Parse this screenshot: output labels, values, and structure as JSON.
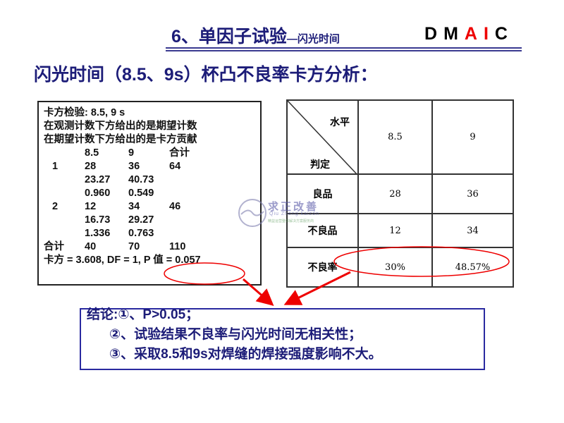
{
  "header": {
    "title": "6、单因子试验",
    "title_suffix": "—闪光时间",
    "brand": [
      "D",
      "M",
      "A",
      "I",
      "C"
    ],
    "brand_highlight": [
      "A",
      "I"
    ],
    "accent_color": "#e00000",
    "title_color": "#1c1c78"
  },
  "subtitle": "闪光时间（8.5、9s）杯凸不良率卡方分析：",
  "chi_square_output": {
    "lines": [
      "卡方检验: 8.5, 9 s",
      "在观测计数下方给出的是期望计数",
      "在期望计数下方给出的是卡方贡献"
    ],
    "columns": [
      "",
      "8.5",
      "9",
      "合计"
    ],
    "rows": [
      [
        "1",
        "28",
        "36",
        "64"
      ],
      [
        "",
        "23.27",
        "40.73",
        ""
      ],
      [
        "",
        "0.960",
        "0.549",
        ""
      ],
      [
        "2",
        "12",
        "34",
        "46"
      ],
      [
        "",
        "16.73",
        "29.27",
        ""
      ],
      [
        "",
        "1.336",
        "0.763",
        ""
      ],
      [
        "合计",
        "40",
        "70",
        "110"
      ]
    ],
    "result": "卡方 = 3.608, DF = 1, P 值 = 0.057"
  },
  "summary_table": {
    "corner_top": "水平",
    "corner_bottom": "判定",
    "columns": [
      "8.5",
      "9"
    ],
    "rows": [
      {
        "label": "良品",
        "values": [
          "28",
          "36"
        ]
      },
      {
        "label": "不良品",
        "values": [
          "12",
          "34"
        ]
      },
      {
        "label": "不良率",
        "values": [
          "30%",
          "48.57%"
        ]
      }
    ]
  },
  "watermark": {
    "text": "求正改善",
    "pinyin": "Qiu Zheng kaizon",
    "tagline": "精益运营整体解决方案服务商"
  },
  "conclusion": [
    "结论:①、P>0.05；",
    "②、试验结果不良率与闪光时间无相关性；",
    "③、采取8.5和9s对焊缝的焊接强度影响不大。"
  ]
}
